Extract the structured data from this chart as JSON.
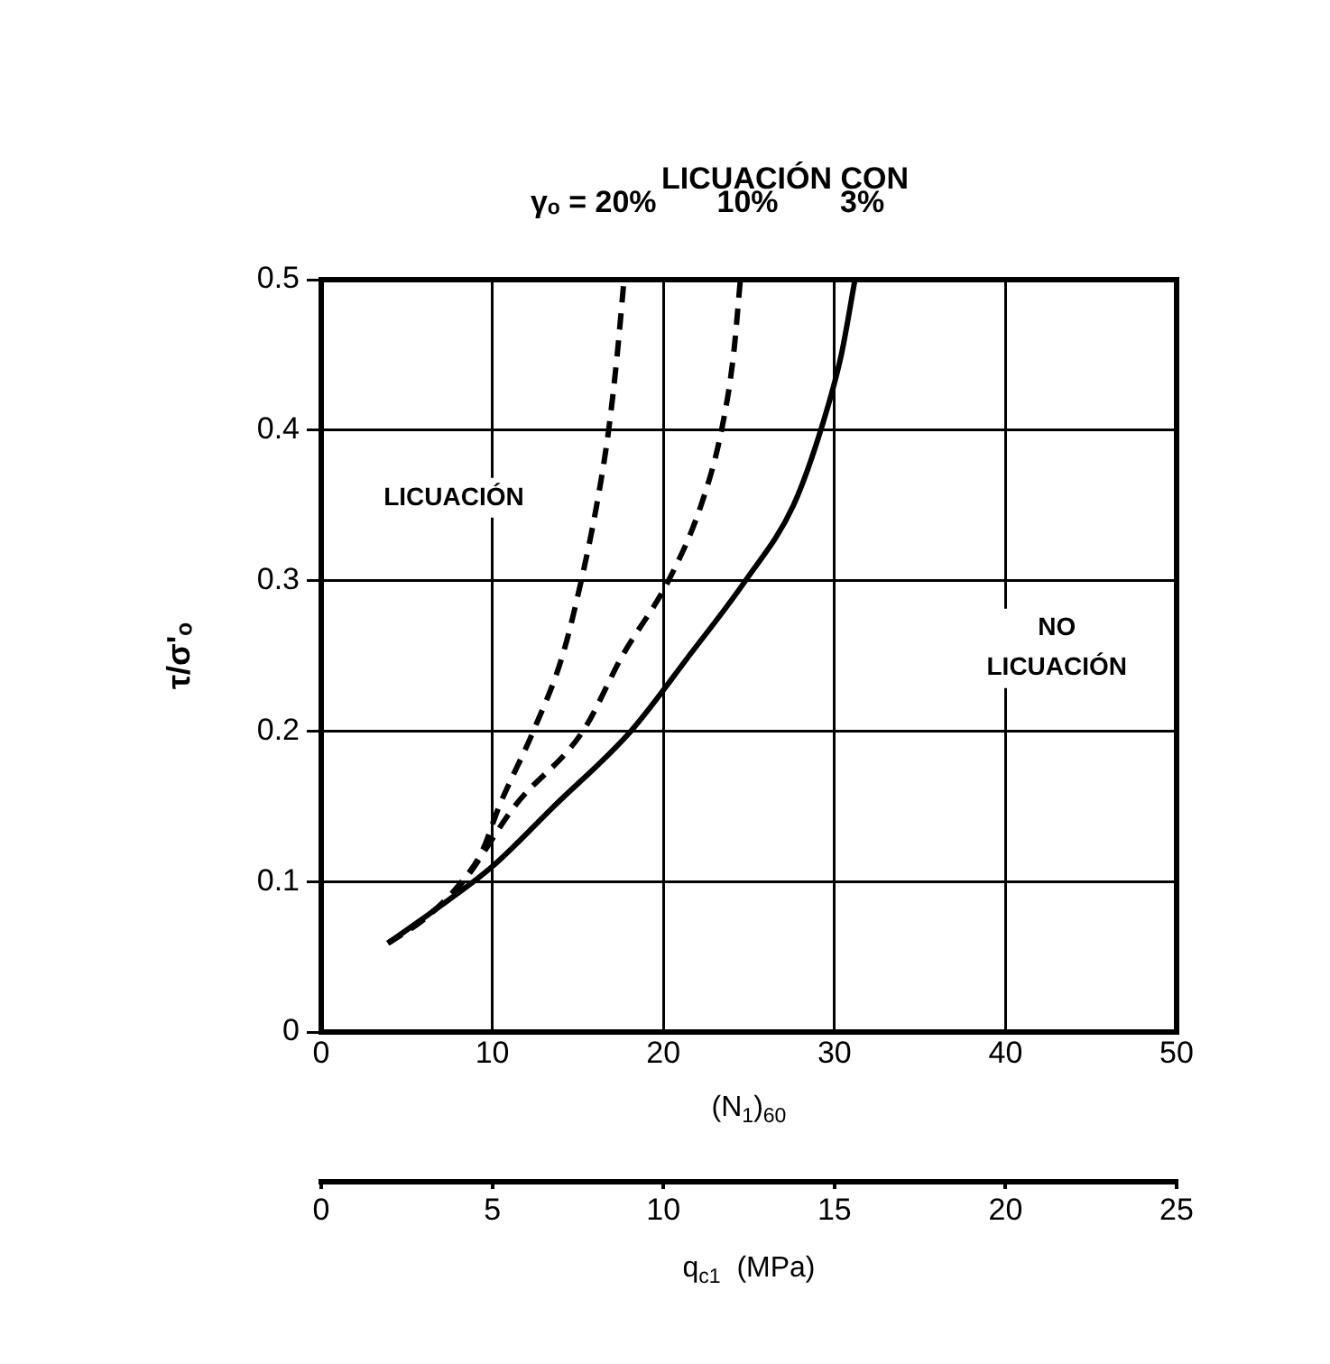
{
  "chart_data": {
    "type": "line",
    "title": "LICUACIÓN CON",
    "xlabel": "(N$_{1}$)$_{60}$",
    "ylabel": "τ/σ'ₒ",
    "x2label": "q$_{c1}$  (MPa)",
    "xlim": [
      0,
      50
    ],
    "xticks": [
      0,
      10,
      20,
      30,
      40,
      50
    ],
    "ylim": [
      0,
      0.5
    ],
    "yticks": [
      0,
      0.1,
      0.2,
      0.3,
      0.4,
      0.5
    ],
    "x2lim": [
      0,
      25
    ],
    "x2ticks": [
      0,
      5,
      10,
      15,
      20,
      25
    ],
    "grid": true,
    "legend": false,
    "marker": "none",
    "series": [
      {
        "name": "γₒ = 20%",
        "color": "#000000",
        "line_style": "dashed",
        "x": [
          3.9,
          6,
          8,
          9.4,
          10.4,
          12.4,
          14.1,
          15.2,
          16.1,
          16.8,
          17.3,
          17.7
        ],
        "values": [
          0.059,
          0.075,
          0.097,
          0.12,
          0.15,
          0.2,
          0.25,
          0.3,
          0.35,
          0.4,
          0.45,
          0.5
        ]
      },
      {
        "name": "10%",
        "color": "#000000",
        "line_style": "dashed",
        "x": [
          3.9,
          6,
          8.3,
          11.3,
          15.3,
          17.6,
          20.3,
          22.2,
          23.4,
          24.1,
          24.5
        ],
        "values": [
          0.059,
          0.075,
          0.1,
          0.15,
          0.2,
          0.25,
          0.3,
          0.35,
          0.4,
          0.45,
          0.5
        ]
      },
      {
        "name": "3%",
        "color": "#000000",
        "line_style": "solid",
        "x": [
          3.9,
          6.5,
          10,
          13.6,
          18.1,
          21.5,
          24.8,
          27.6,
          29.2,
          30.4,
          31.2
        ],
        "values": [
          0.059,
          0.08,
          0.11,
          0.15,
          0.2,
          0.25,
          0.3,
          0.35,
          0.4,
          0.45,
          0.5
        ]
      }
    ],
    "annotations": [
      "LICUACIÓN",
      "NO\nLICUACIÓN"
    ]
  }
}
